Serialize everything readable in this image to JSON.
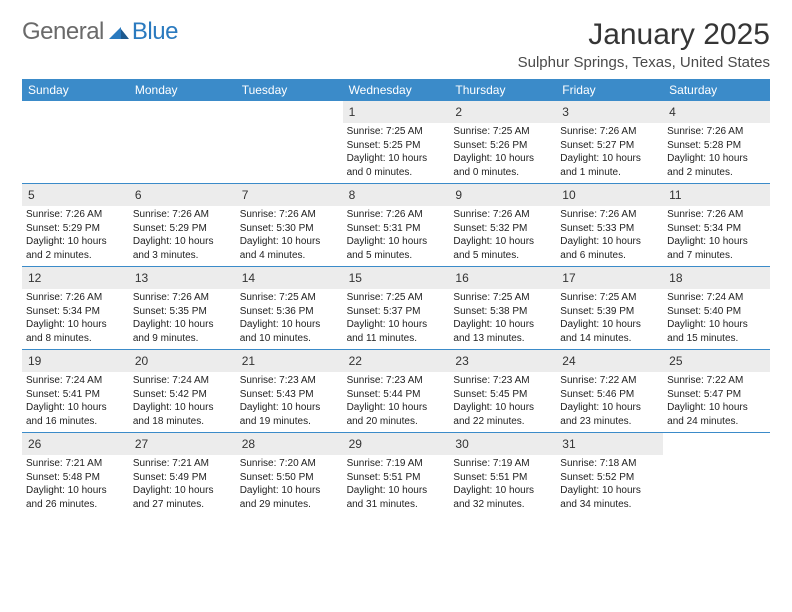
{
  "logo": {
    "text1": "General",
    "text2": "Blue"
  },
  "title": "January 2025",
  "location": "Sulphur Springs, Texas, United States",
  "headers": [
    "Sunday",
    "Monday",
    "Tuesday",
    "Wednesday",
    "Thursday",
    "Friday",
    "Saturday"
  ],
  "colors": {
    "header_bg": "#3b8bc9",
    "daynum_bg": "#ececec",
    "border": "#3b8bc9",
    "logo_gray": "#6a6a6a",
    "logo_blue": "#2a7abf"
  },
  "weeks": [
    [
      {
        "n": "",
        "sr": "",
        "ss": "",
        "dl": ""
      },
      {
        "n": "",
        "sr": "",
        "ss": "",
        "dl": ""
      },
      {
        "n": "",
        "sr": "",
        "ss": "",
        "dl": ""
      },
      {
        "n": "1",
        "sr": "Sunrise: 7:25 AM",
        "ss": "Sunset: 5:25 PM",
        "dl": "Daylight: 10 hours and 0 minutes."
      },
      {
        "n": "2",
        "sr": "Sunrise: 7:25 AM",
        "ss": "Sunset: 5:26 PM",
        "dl": "Daylight: 10 hours and 0 minutes."
      },
      {
        "n": "3",
        "sr": "Sunrise: 7:26 AM",
        "ss": "Sunset: 5:27 PM",
        "dl": "Daylight: 10 hours and 1 minute."
      },
      {
        "n": "4",
        "sr": "Sunrise: 7:26 AM",
        "ss": "Sunset: 5:28 PM",
        "dl": "Daylight: 10 hours and 2 minutes."
      }
    ],
    [
      {
        "n": "5",
        "sr": "Sunrise: 7:26 AM",
        "ss": "Sunset: 5:29 PM",
        "dl": "Daylight: 10 hours and 2 minutes."
      },
      {
        "n": "6",
        "sr": "Sunrise: 7:26 AM",
        "ss": "Sunset: 5:29 PM",
        "dl": "Daylight: 10 hours and 3 minutes."
      },
      {
        "n": "7",
        "sr": "Sunrise: 7:26 AM",
        "ss": "Sunset: 5:30 PM",
        "dl": "Daylight: 10 hours and 4 minutes."
      },
      {
        "n": "8",
        "sr": "Sunrise: 7:26 AM",
        "ss": "Sunset: 5:31 PM",
        "dl": "Daylight: 10 hours and 5 minutes."
      },
      {
        "n": "9",
        "sr": "Sunrise: 7:26 AM",
        "ss": "Sunset: 5:32 PM",
        "dl": "Daylight: 10 hours and 5 minutes."
      },
      {
        "n": "10",
        "sr": "Sunrise: 7:26 AM",
        "ss": "Sunset: 5:33 PM",
        "dl": "Daylight: 10 hours and 6 minutes."
      },
      {
        "n": "11",
        "sr": "Sunrise: 7:26 AM",
        "ss": "Sunset: 5:34 PM",
        "dl": "Daylight: 10 hours and 7 minutes."
      }
    ],
    [
      {
        "n": "12",
        "sr": "Sunrise: 7:26 AM",
        "ss": "Sunset: 5:34 PM",
        "dl": "Daylight: 10 hours and 8 minutes."
      },
      {
        "n": "13",
        "sr": "Sunrise: 7:26 AM",
        "ss": "Sunset: 5:35 PM",
        "dl": "Daylight: 10 hours and 9 minutes."
      },
      {
        "n": "14",
        "sr": "Sunrise: 7:25 AM",
        "ss": "Sunset: 5:36 PM",
        "dl": "Daylight: 10 hours and 10 minutes."
      },
      {
        "n": "15",
        "sr": "Sunrise: 7:25 AM",
        "ss": "Sunset: 5:37 PM",
        "dl": "Daylight: 10 hours and 11 minutes."
      },
      {
        "n": "16",
        "sr": "Sunrise: 7:25 AM",
        "ss": "Sunset: 5:38 PM",
        "dl": "Daylight: 10 hours and 13 minutes."
      },
      {
        "n": "17",
        "sr": "Sunrise: 7:25 AM",
        "ss": "Sunset: 5:39 PM",
        "dl": "Daylight: 10 hours and 14 minutes."
      },
      {
        "n": "18",
        "sr": "Sunrise: 7:24 AM",
        "ss": "Sunset: 5:40 PM",
        "dl": "Daylight: 10 hours and 15 minutes."
      }
    ],
    [
      {
        "n": "19",
        "sr": "Sunrise: 7:24 AM",
        "ss": "Sunset: 5:41 PM",
        "dl": "Daylight: 10 hours and 16 minutes."
      },
      {
        "n": "20",
        "sr": "Sunrise: 7:24 AM",
        "ss": "Sunset: 5:42 PM",
        "dl": "Daylight: 10 hours and 18 minutes."
      },
      {
        "n": "21",
        "sr": "Sunrise: 7:23 AM",
        "ss": "Sunset: 5:43 PM",
        "dl": "Daylight: 10 hours and 19 minutes."
      },
      {
        "n": "22",
        "sr": "Sunrise: 7:23 AM",
        "ss": "Sunset: 5:44 PM",
        "dl": "Daylight: 10 hours and 20 minutes."
      },
      {
        "n": "23",
        "sr": "Sunrise: 7:23 AM",
        "ss": "Sunset: 5:45 PM",
        "dl": "Daylight: 10 hours and 22 minutes."
      },
      {
        "n": "24",
        "sr": "Sunrise: 7:22 AM",
        "ss": "Sunset: 5:46 PM",
        "dl": "Daylight: 10 hours and 23 minutes."
      },
      {
        "n": "25",
        "sr": "Sunrise: 7:22 AM",
        "ss": "Sunset: 5:47 PM",
        "dl": "Daylight: 10 hours and 24 minutes."
      }
    ],
    [
      {
        "n": "26",
        "sr": "Sunrise: 7:21 AM",
        "ss": "Sunset: 5:48 PM",
        "dl": "Daylight: 10 hours and 26 minutes."
      },
      {
        "n": "27",
        "sr": "Sunrise: 7:21 AM",
        "ss": "Sunset: 5:49 PM",
        "dl": "Daylight: 10 hours and 27 minutes."
      },
      {
        "n": "28",
        "sr": "Sunrise: 7:20 AM",
        "ss": "Sunset: 5:50 PM",
        "dl": "Daylight: 10 hours and 29 minutes."
      },
      {
        "n": "29",
        "sr": "Sunrise: 7:19 AM",
        "ss": "Sunset: 5:51 PM",
        "dl": "Daylight: 10 hours and 31 minutes."
      },
      {
        "n": "30",
        "sr": "Sunrise: 7:19 AM",
        "ss": "Sunset: 5:51 PM",
        "dl": "Daylight: 10 hours and 32 minutes."
      },
      {
        "n": "31",
        "sr": "Sunrise: 7:18 AM",
        "ss": "Sunset: 5:52 PM",
        "dl": "Daylight: 10 hours and 34 minutes."
      },
      {
        "n": "",
        "sr": "",
        "ss": "",
        "dl": ""
      }
    ]
  ]
}
